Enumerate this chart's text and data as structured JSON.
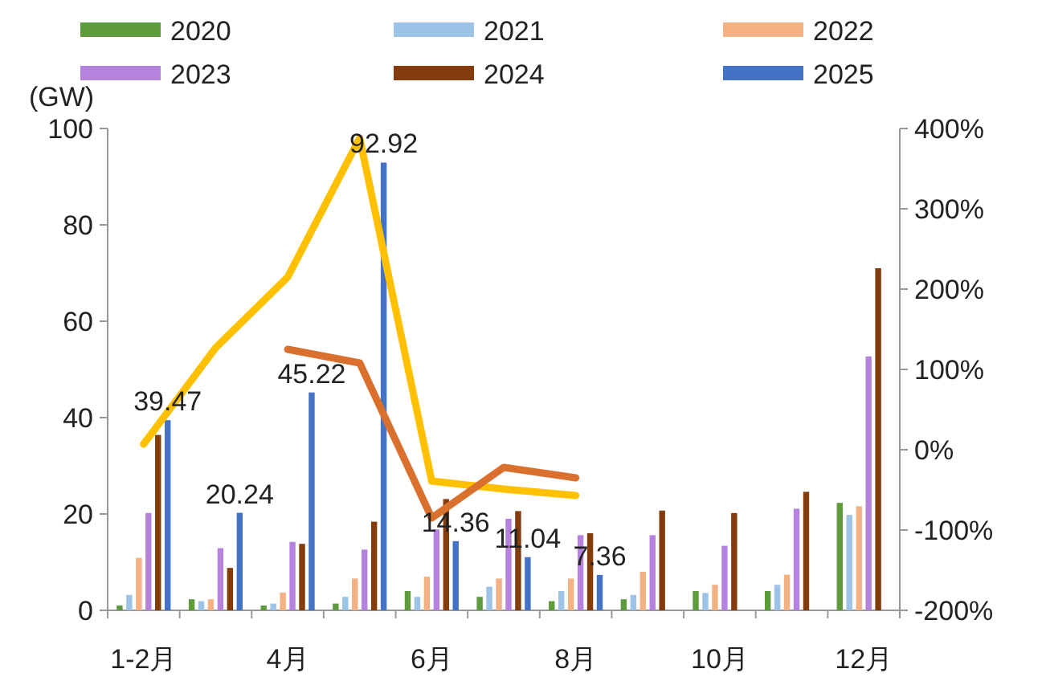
{
  "chart_data": {
    "type": "bar",
    "ylabel": "(GW)",
    "categories": [
      "1-2月",
      null,
      "4月",
      null,
      "6月",
      null,
      "8月",
      null,
      "10月",
      null,
      "12月"
    ],
    "ylim": [
      0,
      100
    ],
    "yticks": [
      0,
      20,
      40,
      60,
      80,
      100
    ],
    "y2lim": [
      -200,
      400
    ],
    "y2ticks": [
      {
        "value": -200,
        "label": "-200%"
      },
      {
        "value": -100,
        "label": "-100%"
      },
      {
        "value": 0,
        "label": "0%"
      },
      {
        "value": 100,
        "label": "100%"
      },
      {
        "value": 200,
        "label": "200%"
      },
      {
        "value": 300,
        "label": "300%"
      },
      {
        "value": 400,
        "label": "400%"
      }
    ],
    "legend": "top",
    "series": [
      {
        "name": "2020",
        "color": "#5e9b3c",
        "values": [
          1.0,
          2.3,
          1.0,
          1.4,
          4.0,
          2.8,
          1.9,
          2.3,
          4.0,
          4.0,
          22.3
        ]
      },
      {
        "name": "2021",
        "color": "#9dc3e6",
        "values": [
          3.2,
          1.9,
          1.4,
          2.8,
          2.8,
          4.9,
          4.0,
          3.2,
          3.6,
          5.3,
          19.8
        ]
      },
      {
        "name": "2022",
        "color": "#f4b183",
        "values": [
          10.9,
          2.3,
          3.7,
          6.6,
          7.0,
          6.6,
          6.6,
          8.0,
          5.3,
          7.4,
          21.6
        ]
      },
      {
        "name": "2023",
        "color": "#b583dd",
        "values": [
          20.2,
          12.9,
          14.2,
          12.6,
          16.8,
          19.0,
          15.6,
          15.6,
          13.4,
          21.1,
          52.7
        ]
      },
      {
        "name": "2024",
        "color": "#843c0c",
        "values": [
          36.4,
          8.8,
          13.8,
          18.4,
          23.1,
          20.6,
          16.0,
          20.7,
          20.2,
          24.6,
          71.0
        ]
      },
      {
        "name": "2025",
        "color": "#4472c4",
        "values": [
          39.47,
          20.24,
          45.22,
          92.92,
          14.36,
          11.04,
          7.36,
          null,
          null,
          null,
          null
        ],
        "value_labels": [
          "39.47",
          "20.24",
          "45.22",
          "92.92",
          "14.36",
          "11.04",
          "7.36",
          null,
          null,
          null,
          null
        ]
      },
      {
        "type": "line",
        "axis": "y2",
        "color": "#ffc000",
        "values": [
          7,
          127,
          215,
          388,
          -39,
          -49,
          -57,
          null,
          null,
          null,
          null
        ]
      },
      {
        "type": "line",
        "axis": "y2",
        "color": "#d9702e",
        "values": [
          null,
          null,
          125,
          108,
          -85,
          -22,
          -35,
          null,
          null,
          null,
          null
        ]
      }
    ]
  }
}
